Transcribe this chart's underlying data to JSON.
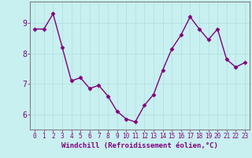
{
  "x": [
    0,
    1,
    2,
    3,
    4,
    5,
    6,
    7,
    8,
    9,
    10,
    11,
    12,
    13,
    14,
    15,
    16,
    17,
    18,
    19,
    20,
    21,
    22,
    23
  ],
  "y": [
    8.8,
    8.8,
    9.3,
    8.2,
    7.1,
    7.2,
    6.85,
    6.95,
    6.6,
    6.1,
    5.85,
    5.75,
    6.3,
    6.65,
    7.45,
    8.15,
    8.6,
    9.2,
    8.8,
    8.45,
    8.8,
    7.8,
    7.55,
    7.7
  ],
  "line_color": "#800080",
  "marker": "D",
  "marker_size": 2.5,
  "bg_color": "#c8f0f0",
  "grid_color": "#b0dde0",
  "xlabel": "Windchill (Refroidissement éolien,°C)",
  "xlabel_color": "#800080",
  "xlabel_fontsize": 6.5,
  "xlim": [
    -0.5,
    23.5
  ],
  "ylim": [
    5.5,
    9.7
  ],
  "yticks": [
    6,
    7,
    8,
    9
  ],
  "xticks": [
    0,
    1,
    2,
    3,
    4,
    5,
    6,
    7,
    8,
    9,
    10,
    11,
    12,
    13,
    14,
    15,
    16,
    17,
    18,
    19,
    20,
    21,
    22,
    23
  ],
  "tick_color": "#800080",
  "ytick_fontsize": 7,
  "xtick_fontsize": 5.5,
  "spine_color": "#808080",
  "line_width": 1.0
}
